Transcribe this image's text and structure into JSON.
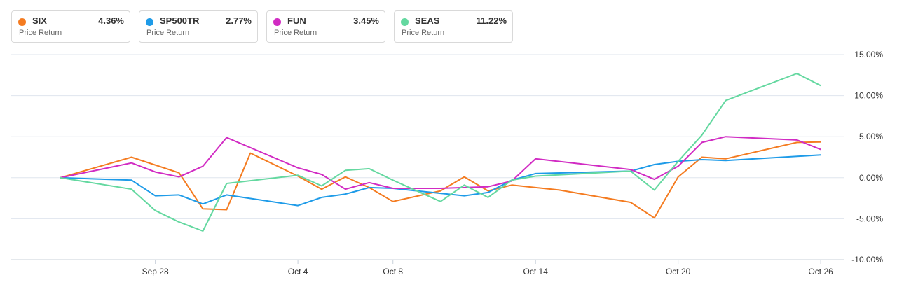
{
  "legend": [
    {
      "ticker": "SIX",
      "change": "4.36%",
      "sub": "Price Return",
      "color": "#f47b20"
    },
    {
      "ticker": "SP500TR",
      "change": "2.77%",
      "sub": "Price Return",
      "color": "#1e9be8"
    },
    {
      "ticker": "FUN",
      "change": "3.45%",
      "sub": "Price Return",
      "color": "#d12bc3"
    },
    {
      "ticker": "SEAS",
      "change": "11.22%",
      "sub": "Price Return",
      "color": "#64d8a0"
    }
  ],
  "chart_data": {
    "type": "line",
    "title": "",
    "xlabel": "",
    "ylabel": "",
    "ylim": [
      -10,
      15
    ],
    "grid": true,
    "y_ticks": [
      "15.00%",
      "10.00%",
      "5.00%",
      "0.00%",
      "-5.00%",
      "-10.00%"
    ],
    "x_ticks": [
      "Sep 28",
      "Oct 4",
      "Oct 8",
      "Oct 14",
      "Oct 20",
      "Oct 26"
    ],
    "x_tick_days": [
      2,
      8,
      12,
      18,
      24,
      30
    ],
    "series": [
      {
        "name": "SIX",
        "color": "#f47b20",
        "x": [
          -2,
          1,
          3,
          4,
          5,
          6,
          8,
          9,
          10,
          11,
          12,
          14,
          15,
          16,
          17,
          18,
          19,
          22,
          23,
          24,
          25,
          26,
          29,
          30
        ],
        "y": [
          0,
          2.5,
          0.6,
          -3.8,
          -3.9,
          3.0,
          0.2,
          -1.4,
          0.1,
          -1.2,
          -2.9,
          -1.6,
          0.1,
          -1.6,
          -0.9,
          -1.2,
          -1.5,
          -3.0,
          -4.9,
          0.1,
          2.5,
          2.3,
          4.3,
          4.36
        ]
      },
      {
        "name": "SP500TR",
        "color": "#1e9be8",
        "x": [
          -2,
          1,
          2,
          3,
          4,
          5,
          8,
          9,
          10,
          11,
          12,
          14,
          15,
          16,
          17,
          18,
          22,
          23,
          24,
          25,
          26,
          30
        ],
        "y": [
          0,
          -0.3,
          -2.2,
          -2.1,
          -3.2,
          -2.1,
          -3.4,
          -2.4,
          -2.0,
          -1.2,
          -1.3,
          -1.9,
          -2.2,
          -1.8,
          -0.3,
          0.5,
          0.8,
          1.6,
          2.0,
          2.2,
          2.1,
          2.77
        ]
      },
      {
        "name": "FUN",
        "color": "#d12bc3",
        "x": [
          -2,
          1,
          2,
          3,
          4,
          5,
          8,
          9,
          10,
          11,
          12,
          14,
          15,
          16,
          17,
          18,
          22,
          23,
          24,
          25,
          26,
          29,
          30
        ],
        "y": [
          0,
          1.8,
          0.7,
          0.1,
          1.4,
          4.9,
          1.2,
          0.4,
          -1.4,
          -0.6,
          -1.3,
          -1.3,
          -1.2,
          -1.1,
          -0.4,
          2.3,
          1.0,
          -0.2,
          1.4,
          4.3,
          5.0,
          4.6,
          3.45
        ]
      },
      {
        "name": "SEAS",
        "color": "#64d8a0",
        "x": [
          -2,
          1,
          2,
          3,
          4,
          5,
          8,
          9,
          10,
          11,
          12,
          14,
          15,
          16,
          17,
          18,
          22,
          23,
          24,
          25,
          26,
          29,
          30
        ],
        "y": [
          0,
          -1.4,
          -4.0,
          -5.4,
          -6.5,
          -0.7,
          0.3,
          -1.0,
          0.9,
          1.1,
          -0.3,
          -2.9,
          -0.9,
          -2.4,
          -0.3,
          0.2,
          0.8,
          -1.5,
          2.0,
          5.2,
          9.4,
          12.7,
          11.22
        ]
      }
    ]
  }
}
